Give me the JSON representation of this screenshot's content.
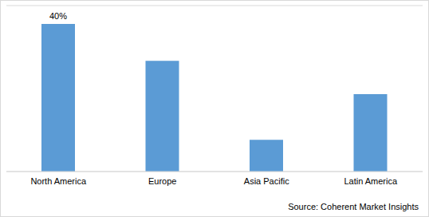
{
  "chart_data": {
    "type": "bar",
    "source": "Source: Coherent Market Insights",
    "categories": [
      "North America",
      "Europe",
      "Asia Pacific",
      "Latin America"
    ],
    "values": [
      40,
      30,
      8.6,
      21
    ],
    "value_labels": [
      "40%",
      null,
      null,
      null
    ],
    "data_labels": true,
    "color": "#5b9bd5",
    "ylim": [
      0,
      45
    ],
    "yticks": [
      0,
      5,
      10,
      15,
      20,
      25,
      30,
      35,
      40,
      45
    ],
    "grid": true,
    "tick_labels": "x"
  }
}
